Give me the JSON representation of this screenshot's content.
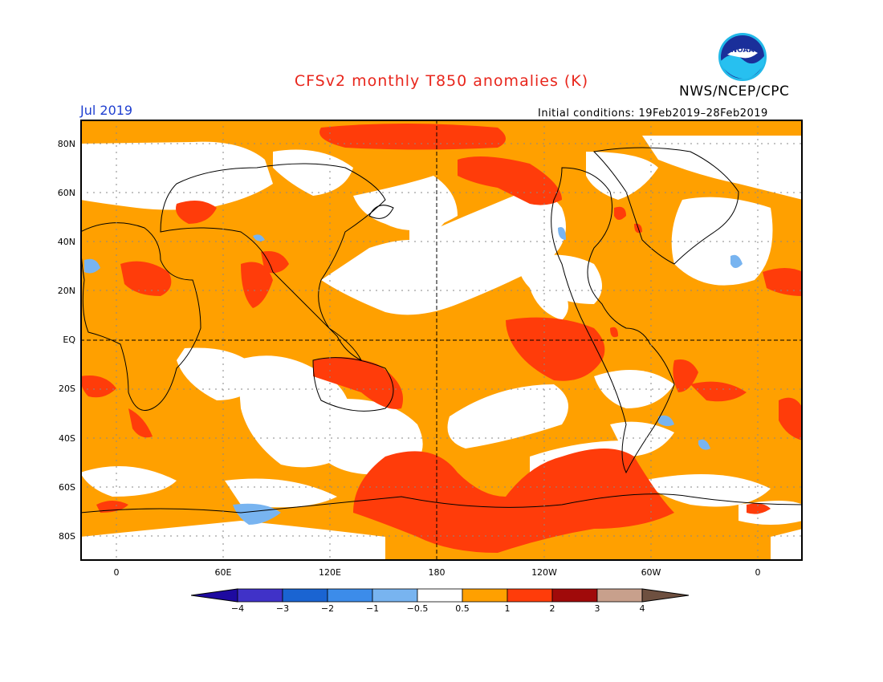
{
  "title": "CFSv2 monthly T850 anomalies (K)",
  "org": "NWS/NCEP/CPC",
  "logo_text": "NOAA",
  "month": "Jul 2019",
  "initial_conditions": "Initial conditions: 19Feb2019–28Feb2019",
  "lat_labels": [
    "80N",
    "60N",
    "40N",
    "20N",
    "EQ",
    "20S",
    "40S",
    "60S",
    "80S"
  ],
  "lon_labels": [
    "0",
    "60E",
    "120E",
    "180",
    "120W",
    "60W",
    "0"
  ],
  "colorbar": {
    "colors": [
      "#1e0aa0",
      "#4032c8",
      "#1a64d2",
      "#3c8cea",
      "#78b4f0",
      "#ffffff",
      "#ffa000",
      "#ff3c0a",
      "#a00a0a",
      "#c8a08c",
      "#6e5040"
    ],
    "labels": [
      "−4",
      "−3",
      "−2",
      "−1",
      "−0.5",
      "0.5",
      "1",
      "2",
      "3",
      "4"
    ]
  },
  "map_colors": {
    "background": "#ffa000",
    "neutral": "#ffffff",
    "warm": "#ff3c0a",
    "cool": "#78b4f0",
    "coast": "#000000"
  }
}
